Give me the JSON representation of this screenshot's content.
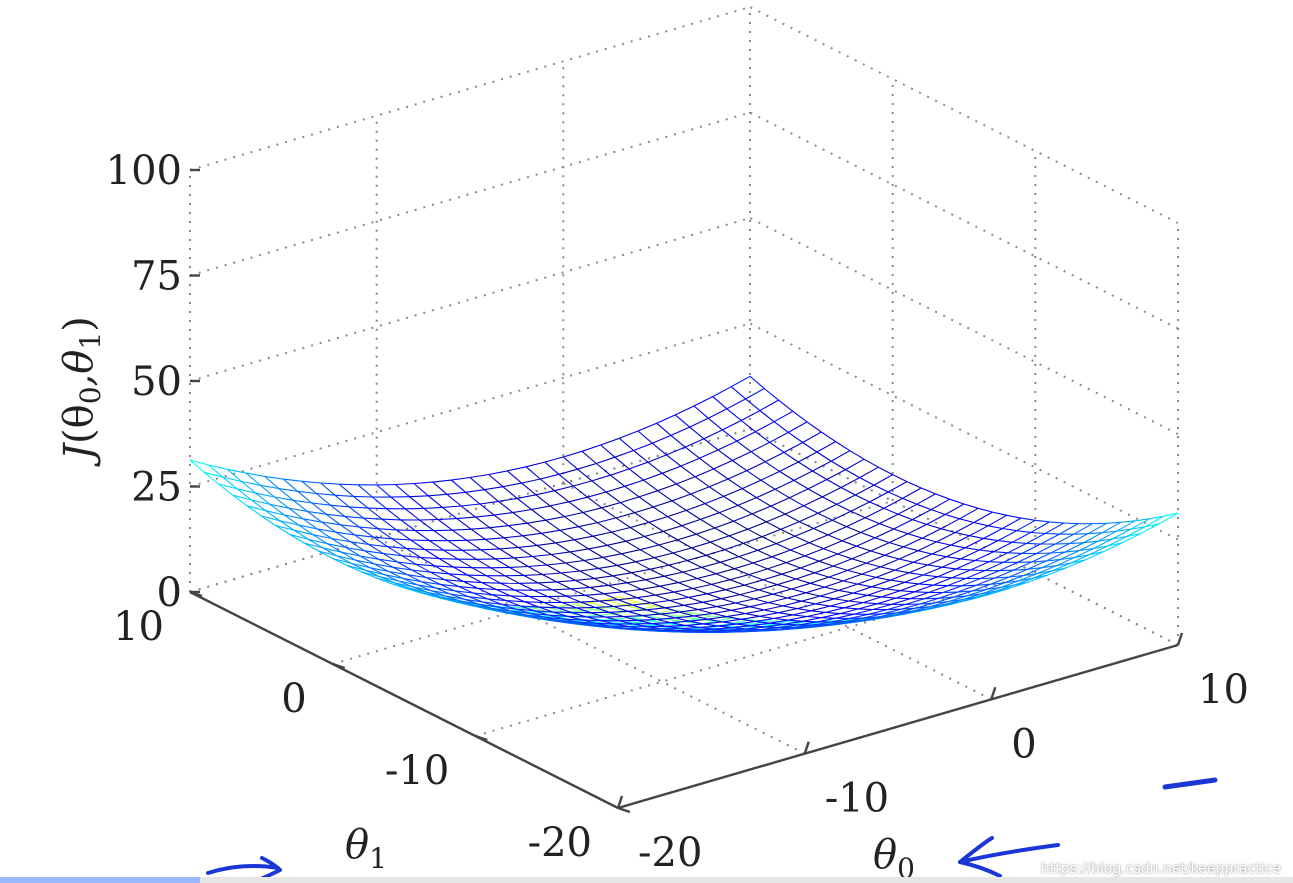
{
  "chart_data": {
    "type": "surface",
    "function": "J = a*(θ0^2 + θ1^2)",
    "zlabel": "J(θ0,θ1)",
    "xlabel": "θ0",
    "ylabel": "θ1",
    "xlim": [
      -20,
      10
    ],
    "ylim": [
      -20,
      10
    ],
    "zlim": [
      0,
      100
    ],
    "x_ticks": [
      "-20",
      "-10",
      "0",
      "10"
    ],
    "y_ticks": [
      "-20",
      "-10",
      "0",
      "10"
    ],
    "z_ticks": [
      "0",
      "25",
      "50",
      "75",
      "100"
    ],
    "grid": true,
    "colormap": "jet",
    "colormap_stops": [
      "#00008f",
      "#0000ff",
      "#00ffff",
      "#ffff00",
      "#ff0000",
      "#800000"
    ],
    "color_range": [
      0,
      80
    ],
    "surface_scale": 0.0625,
    "grid_step": 1
  },
  "labels": {
    "zlabel_main": "J",
    "zlabel_paren": "(θ",
    "zlabel_sub0": "0",
    "zlabel_comma": ",θ",
    "zlabel_sub1": "1",
    "zlabel_close": ")",
    "xlabel_main": "θ",
    "xlabel_sub": "0",
    "ylabel_main": "θ",
    "ylabel_sub": "1"
  },
  "annotations": {
    "ink_color": "#1a36d6"
  },
  "watermark": "https://blog.csdn.net/keeppractice"
}
